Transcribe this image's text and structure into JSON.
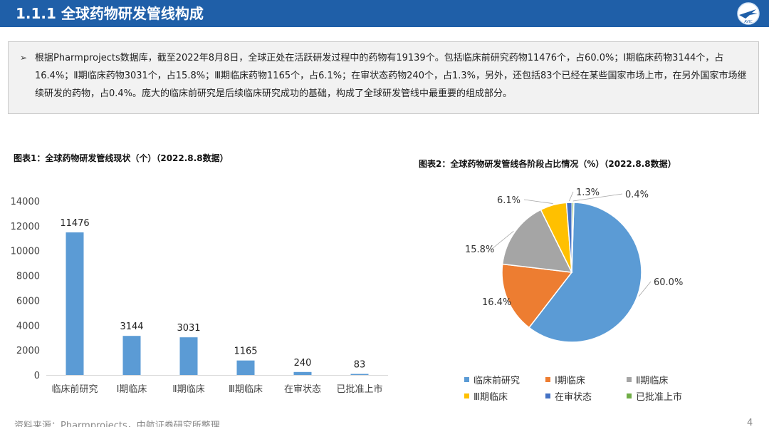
{
  "header": {
    "title": "1.1.1 全球药物研发管线构成",
    "logo_icon": "avic-logo-icon",
    "logo_text": "AVIC"
  },
  "summary": {
    "bullet": "➢",
    "text": "根据Pharmprojects数据库，截至2022年8月8日，全球正处在活跃研发过程中的药物有19139个。包括临床前研究药物11476个，占60.0%；Ⅰ期临床药物3144个，占16.4%；Ⅱ期临床药物3031个，占15.8%；Ⅲ期临床药物1165个，占6.1%；在审状态药物240个，占1.3%，另外，还包括83个已经在某些国家市场上市，在另外国家市场继续研发的药物，占0.4%。庞大的临床前研究是后续临床研究成功的基础，构成了全球研发管线中最重要的组成部分。"
  },
  "chart_data": [
    {
      "type": "bar",
      "title": "图表1：全球药物研发管线现状（个）（2022.8.8数据）",
      "categories": [
        "临床前研究",
        "Ⅰ期临床",
        "Ⅱ期临床",
        "Ⅲ期临床",
        "在审状态",
        "已批准上市"
      ],
      "values": [
        11476,
        3144,
        3031,
        1165,
        240,
        83
      ],
      "value_labels": [
        "11476",
        "3144",
        "3031",
        "1165",
        "240",
        "83"
      ],
      "yticks": [
        "0",
        "2000",
        "4000",
        "6000",
        "8000",
        "10000",
        "12000",
        "14000"
      ],
      "ylim": [
        0,
        14000
      ],
      "grid": false,
      "color": "#5b9bd5"
    },
    {
      "type": "pie",
      "title": "图表2：全球药物研发管线各阶段占比情况（%）（2022.8.8数据）",
      "categories": [
        "临床前研究",
        "Ⅰ期临床",
        "Ⅱ期临床",
        "Ⅲ期临床",
        "在审状态",
        "已批准上市"
      ],
      "values": [
        60.0,
        16.4,
        15.8,
        6.1,
        1.3,
        0.4
      ],
      "value_labels": [
        "60.0%",
        "16.4%",
        "15.8%",
        "6.1%",
        "1.3%",
        "0.4%"
      ],
      "colors": [
        "#5b9bd5",
        "#ed7d31",
        "#a5a5a5",
        "#ffc000",
        "#4472c4",
        "#70ad47"
      ],
      "legend": "bottom"
    }
  ],
  "footer": {
    "source": "资料来源：Pharmprojects，中航证券研究所整理",
    "page": "4"
  }
}
